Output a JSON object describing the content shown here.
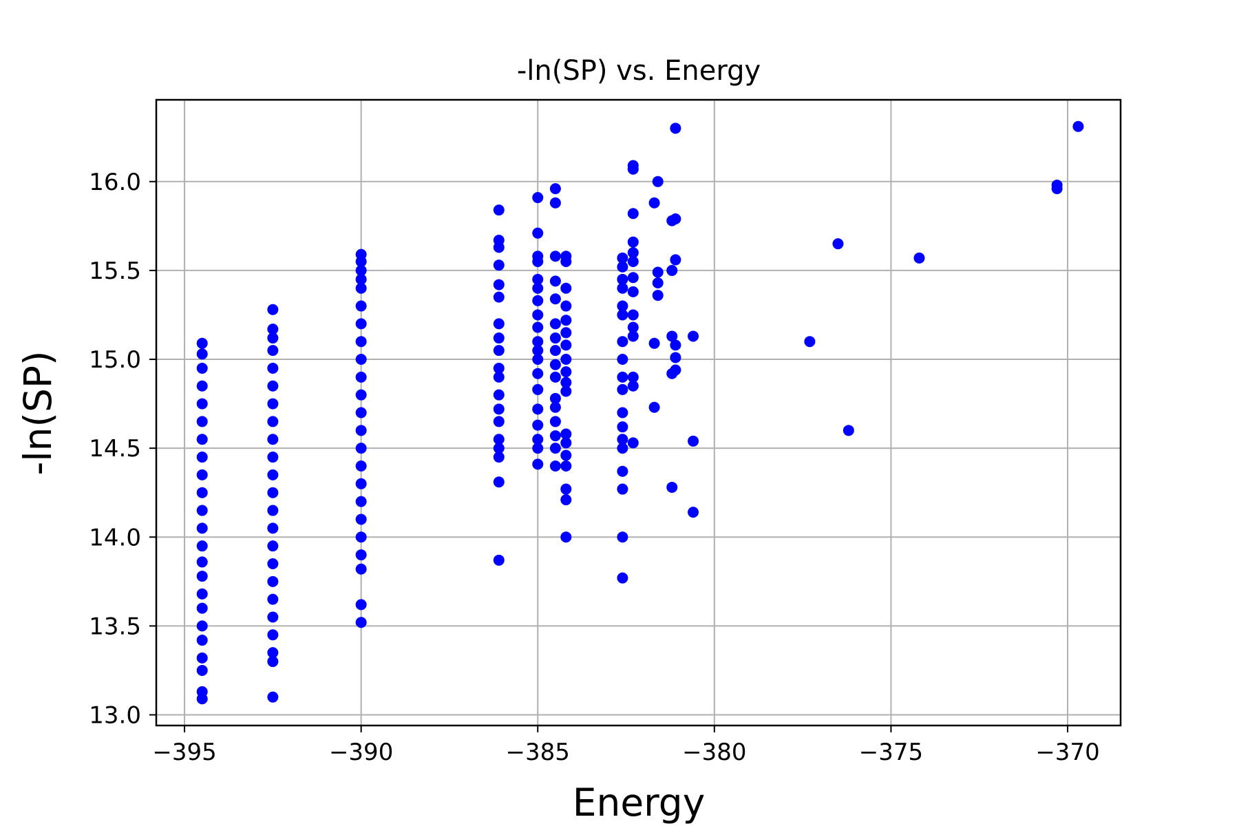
{
  "chart_data": {
    "type": "scatter",
    "title": "-ln(SP) vs. Energy",
    "xlabel": "Energy",
    "ylabel": "-ln(SP)",
    "xlim": [
      -395.8,
      -368.5
    ],
    "ylim": [
      12.94,
      16.46
    ],
    "grid": true,
    "point_color": "#0000ff",
    "x_ticks": [
      -395,
      -390,
      -385,
      -380,
      -375,
      -370
    ],
    "x_tick_labels": [
      "−395",
      "−390",
      "−385",
      "−380",
      "−375",
      "−370"
    ],
    "y_ticks": [
      13.0,
      13.5,
      14.0,
      14.5,
      15.0,
      15.5,
      16.0
    ],
    "y_tick_labels": [
      "13.0",
      "13.5",
      "14.0",
      "14.5",
      "15.0",
      "15.5",
      "16.0"
    ],
    "series": [
      {
        "points": [
          [
            -394.5,
            13.09
          ],
          [
            -394.5,
            13.13
          ],
          [
            -394.5,
            13.25
          ],
          [
            -394.5,
            13.32
          ],
          [
            -394.5,
            13.42
          ],
          [
            -394.5,
            13.5
          ],
          [
            -394.5,
            13.6
          ],
          [
            -394.5,
            13.68
          ],
          [
            -394.5,
            13.78
          ],
          [
            -394.5,
            13.86
          ],
          [
            -394.5,
            13.95
          ],
          [
            -394.5,
            14.05
          ],
          [
            -394.5,
            14.15
          ],
          [
            -394.5,
            14.25
          ],
          [
            -394.5,
            14.35
          ],
          [
            -394.5,
            14.45
          ],
          [
            -394.5,
            14.55
          ],
          [
            -394.5,
            14.65
          ],
          [
            -394.5,
            14.75
          ],
          [
            -394.5,
            14.85
          ],
          [
            -394.5,
            14.95
          ],
          [
            -394.5,
            15.03
          ],
          [
            -394.5,
            15.09
          ],
          [
            -392.5,
            13.1
          ],
          [
            -392.5,
            13.3
          ],
          [
            -392.5,
            13.35
          ],
          [
            -392.5,
            13.45
          ],
          [
            -392.5,
            13.55
          ],
          [
            -392.5,
            13.65
          ],
          [
            -392.5,
            13.75
          ],
          [
            -392.5,
            13.85
          ],
          [
            -392.5,
            13.95
          ],
          [
            -392.5,
            14.05
          ],
          [
            -392.5,
            14.15
          ],
          [
            -392.5,
            14.25
          ],
          [
            -392.5,
            14.35
          ],
          [
            -392.5,
            14.45
          ],
          [
            -392.5,
            14.55
          ],
          [
            -392.5,
            14.65
          ],
          [
            -392.5,
            14.75
          ],
          [
            -392.5,
            14.85
          ],
          [
            -392.5,
            14.95
          ],
          [
            -392.5,
            15.05
          ],
          [
            -392.5,
            15.12
          ],
          [
            -392.5,
            15.17
          ],
          [
            -392.5,
            15.28
          ],
          [
            -390.0,
            13.52
          ],
          [
            -390.0,
            13.62
          ],
          [
            -390.0,
            13.82
          ],
          [
            -390.0,
            13.9
          ],
          [
            -390.0,
            14.0
          ],
          [
            -390.0,
            14.1
          ],
          [
            -390.0,
            14.2
          ],
          [
            -390.0,
            14.3
          ],
          [
            -390.0,
            14.4
          ],
          [
            -390.0,
            14.5
          ],
          [
            -390.0,
            14.6
          ],
          [
            -390.0,
            14.7
          ],
          [
            -390.0,
            14.8
          ],
          [
            -390.0,
            14.9
          ],
          [
            -390.0,
            15.0
          ],
          [
            -390.0,
            15.1
          ],
          [
            -390.0,
            15.2
          ],
          [
            -390.0,
            15.3
          ],
          [
            -390.0,
            15.4
          ],
          [
            -390.0,
            15.45
          ],
          [
            -390.0,
            15.5
          ],
          [
            -390.0,
            15.55
          ],
          [
            -390.0,
            15.59
          ],
          [
            -386.1,
            13.87
          ],
          [
            -386.1,
            14.31
          ],
          [
            -386.1,
            14.45
          ],
          [
            -386.1,
            14.5
          ],
          [
            -386.1,
            14.55
          ],
          [
            -386.1,
            14.65
          ],
          [
            -386.1,
            14.72
          ],
          [
            -386.1,
            14.8
          ],
          [
            -386.1,
            14.9
          ],
          [
            -386.1,
            14.95
          ],
          [
            -386.1,
            15.05
          ],
          [
            -386.1,
            15.12
          ],
          [
            -386.1,
            15.2
          ],
          [
            -386.1,
            15.35
          ],
          [
            -386.1,
            15.42
          ],
          [
            -386.1,
            15.53
          ],
          [
            -386.1,
            15.63
          ],
          [
            -386.1,
            15.67
          ],
          [
            -386.1,
            15.84
          ],
          [
            -385.0,
            14.41
          ],
          [
            -385.0,
            14.5
          ],
          [
            -385.0,
            14.55
          ],
          [
            -385.0,
            14.63
          ],
          [
            -385.0,
            14.72
          ],
          [
            -385.0,
            14.83
          ],
          [
            -385.0,
            14.92
          ],
          [
            -385.0,
            15.0
          ],
          [
            -385.0,
            15.05
          ],
          [
            -385.0,
            15.1
          ],
          [
            -385.0,
            15.18
          ],
          [
            -385.0,
            15.25
          ],
          [
            -385.0,
            15.33
          ],
          [
            -385.0,
            15.4
          ],
          [
            -385.0,
            15.45
          ],
          [
            -385.0,
            15.55
          ],
          [
            -385.0,
            15.58
          ],
          [
            -385.0,
            15.71
          ],
          [
            -385.0,
            15.91
          ],
          [
            -384.5,
            14.4
          ],
          [
            -384.5,
            14.5
          ],
          [
            -384.5,
            14.57
          ],
          [
            -384.5,
            14.65
          ],
          [
            -384.5,
            14.73
          ],
          [
            -384.5,
            14.78
          ],
          [
            -384.5,
            14.9
          ],
          [
            -384.5,
            14.97
          ],
          [
            -384.5,
            15.05
          ],
          [
            -384.5,
            15.12
          ],
          [
            -384.5,
            15.2
          ],
          [
            -384.5,
            15.34
          ],
          [
            -384.5,
            15.44
          ],
          [
            -384.5,
            15.58
          ],
          [
            -384.5,
            15.88
          ],
          [
            -384.5,
            15.96
          ],
          [
            -384.2,
            14.0
          ],
          [
            -384.2,
            14.21
          ],
          [
            -384.2,
            14.27
          ],
          [
            -384.2,
            14.4
          ],
          [
            -384.2,
            14.46
          ],
          [
            -384.2,
            14.53
          ],
          [
            -384.2,
            14.58
          ],
          [
            -384.2,
            14.82
          ],
          [
            -384.2,
            14.87
          ],
          [
            -384.2,
            14.93
          ],
          [
            -384.2,
            15.0
          ],
          [
            -384.2,
            15.08
          ],
          [
            -384.2,
            15.15
          ],
          [
            -384.2,
            15.22
          ],
          [
            -384.2,
            15.3
          ],
          [
            -384.2,
            15.4
          ],
          [
            -384.2,
            15.55
          ],
          [
            -384.2,
            15.58
          ],
          [
            -382.6,
            13.77
          ],
          [
            -382.6,
            14.0
          ],
          [
            -382.6,
            14.27
          ],
          [
            -382.6,
            14.37
          ],
          [
            -382.6,
            14.5
          ],
          [
            -382.6,
            14.55
          ],
          [
            -382.6,
            14.62
          ],
          [
            -382.6,
            14.7
          ],
          [
            -382.6,
            14.83
          ],
          [
            -382.6,
            14.9
          ],
          [
            -382.6,
            15.0
          ],
          [
            -382.6,
            15.1
          ],
          [
            -382.6,
            15.25
          ],
          [
            -382.6,
            15.3
          ],
          [
            -382.6,
            15.4
          ],
          [
            -382.6,
            15.45
          ],
          [
            -382.6,
            15.52
          ],
          [
            -382.6,
            15.57
          ],
          [
            -382.3,
            14.53
          ],
          [
            -382.3,
            14.85
          ],
          [
            -382.3,
            14.9
          ],
          [
            -382.3,
            15.13
          ],
          [
            -382.3,
            15.18
          ],
          [
            -382.3,
            15.25
          ],
          [
            -382.3,
            15.38
          ],
          [
            -382.3,
            15.46
          ],
          [
            -382.3,
            15.55
          ],
          [
            -382.3,
            15.6
          ],
          [
            -382.3,
            15.66
          ],
          [
            -382.3,
            15.82
          ],
          [
            -382.3,
            16.07
          ],
          [
            -382.3,
            16.09
          ],
          [
            -381.7,
            14.73
          ],
          [
            -381.7,
            15.09
          ],
          [
            -381.6,
            15.36
          ],
          [
            -381.6,
            15.43
          ],
          [
            -381.6,
            15.49
          ],
          [
            -381.7,
            15.88
          ],
          [
            -381.6,
            16.0
          ],
          [
            -381.2,
            14.28
          ],
          [
            -381.2,
            14.92
          ],
          [
            -381.2,
            15.13
          ],
          [
            -381.2,
            15.5
          ],
          [
            -381.2,
            15.78
          ],
          [
            -381.1,
            14.94
          ],
          [
            -381.1,
            15.01
          ],
          [
            -381.1,
            15.08
          ],
          [
            -381.1,
            15.56
          ],
          [
            -381.1,
            15.79
          ],
          [
            -381.1,
            16.3
          ],
          [
            -380.6,
            14.14
          ],
          [
            -380.6,
            14.54
          ],
          [
            -380.6,
            15.13
          ],
          [
            -377.3,
            15.1
          ],
          [
            -376.5,
            15.65
          ],
          [
            -376.2,
            14.6
          ],
          [
            -374.2,
            15.57
          ],
          [
            -370.3,
            15.96
          ],
          [
            -370.3,
            15.98
          ],
          [
            -369.7,
            16.31
          ]
        ]
      }
    ]
  }
}
